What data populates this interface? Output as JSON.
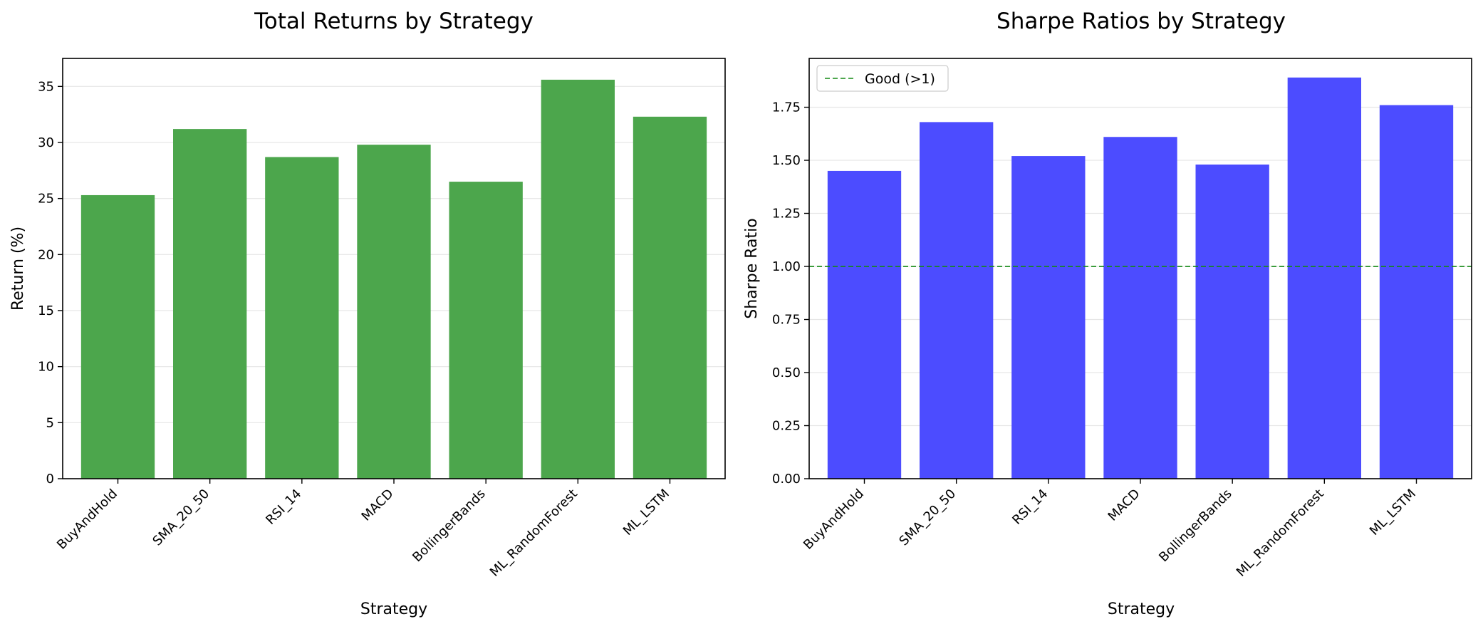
{
  "chart_data": [
    {
      "type": "bar",
      "title": "Total Returns by Strategy",
      "xlabel": "Strategy",
      "ylabel": "Return (%)",
      "categories": [
        "BuyAndHold",
        "SMA_20_50",
        "RSI_14",
        "MACD",
        "BollingerBands",
        "ML_RandomForest",
        "ML_LSTM"
      ],
      "values": [
        25.3,
        31.2,
        28.7,
        29.8,
        26.5,
        35.6,
        32.3
      ],
      "ylim": [
        0,
        37.5
      ],
      "yticks": [
        0,
        5,
        10,
        15,
        20,
        25,
        30,
        35
      ],
      "ytick_labels": [
        "0",
        "5",
        "10",
        "15",
        "20",
        "25",
        "30",
        "35"
      ],
      "grid": "y",
      "bar_color": "#4ca64c"
    },
    {
      "type": "bar",
      "title": "Sharpe Ratios by Strategy",
      "xlabel": "Strategy",
      "ylabel": "Sharpe Ratio",
      "categories": [
        "BuyAndHold",
        "SMA_20_50",
        "RSI_14",
        "MACD",
        "BollingerBands",
        "ML_RandomForest",
        "ML_LSTM"
      ],
      "values": [
        1.45,
        1.68,
        1.52,
        1.61,
        1.48,
        1.89,
        1.76
      ],
      "ylim": [
        0,
        1.98
      ],
      "yticks": [
        0,
        0.25,
        0.5,
        0.75,
        1.0,
        1.25,
        1.5,
        1.75
      ],
      "ytick_labels": [
        "0.00",
        "0.25",
        "0.50",
        "0.75",
        "1.00",
        "1.25",
        "1.50",
        "1.75"
      ],
      "grid": "y",
      "bar_color": "#4c4cff",
      "reference_line": {
        "y": 1.0,
        "label": "Good (>1)",
        "color": "#138a13",
        "style": "dashed"
      },
      "legend": {
        "position": "top-left",
        "entries": [
          "Good (>1)"
        ]
      }
    }
  ]
}
